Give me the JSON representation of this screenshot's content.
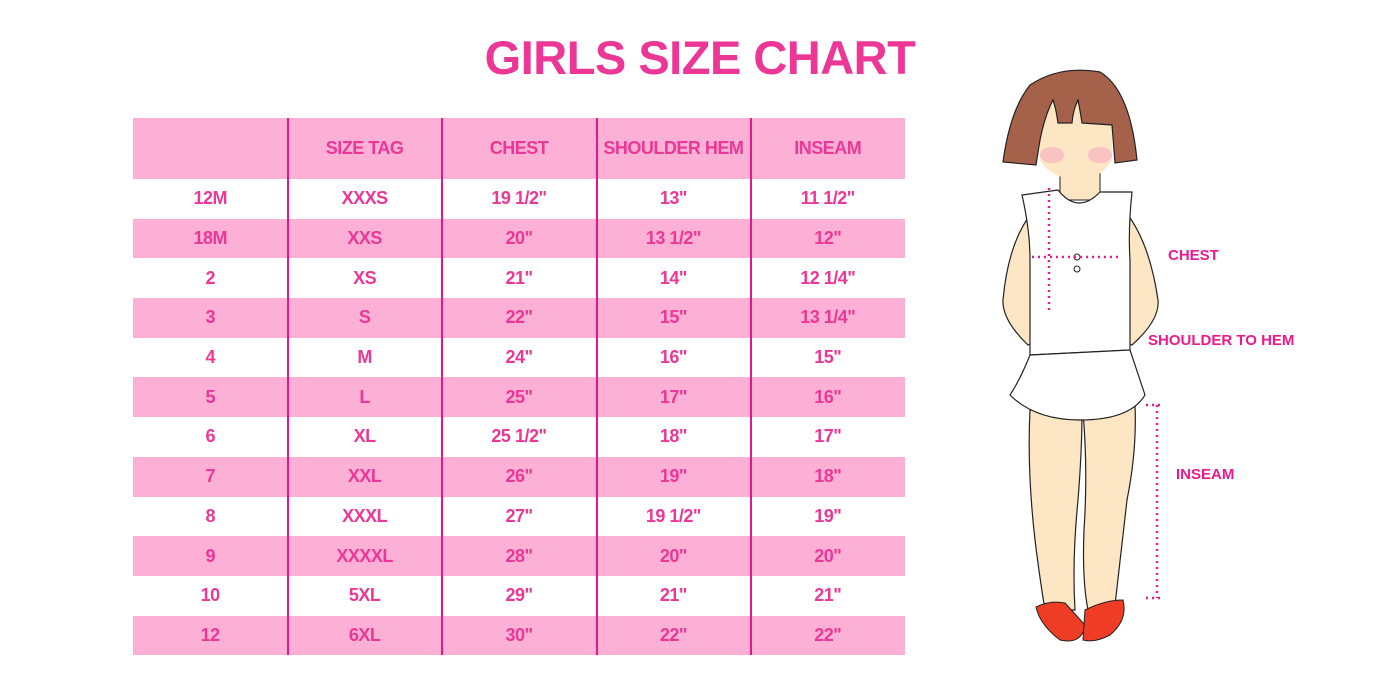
{
  "title": "GIRLS SIZE CHART",
  "table": {
    "headers": [
      "",
      "SIZE TAG",
      "CHEST",
      "SHOULDER HEM",
      "INSEAM"
    ],
    "rows": [
      [
        "12M",
        "XXXS",
        "19 1/2\"",
        "13\"",
        "11 1/2\""
      ],
      [
        "18M",
        "XXS",
        "20\"",
        "13 1/2\"",
        "12\""
      ],
      [
        "2",
        "XS",
        "21\"",
        "14\"",
        "12 1/4\""
      ],
      [
        "3",
        "S",
        "22\"",
        "15\"",
        "13 1/4\""
      ],
      [
        "4",
        "M",
        "24\"",
        "16\"",
        "15\""
      ],
      [
        "5",
        "L",
        "25\"",
        "17\"",
        "16\""
      ],
      [
        "6",
        "XL",
        "25 1/2\"",
        "18\"",
        "17\""
      ],
      [
        "7",
        "XXL",
        "26\"",
        "19\"",
        "18\""
      ],
      [
        "8",
        "XXXL",
        "27\"",
        "19 1/2\"",
        "19\""
      ],
      [
        "9",
        "XXXXL",
        "28\"",
        "20\"",
        "20\""
      ],
      [
        "10",
        "5XL",
        "29\"",
        "21\"",
        "21\""
      ],
      [
        "12",
        "6XL",
        "30\"",
        "22\"",
        "22\""
      ]
    ]
  },
  "figure": {
    "labels": {
      "chest": "CHEST",
      "shoulder_to_hem": "SHOULDER TO HEM",
      "inseam": "INSEAM"
    }
  },
  "colors": {
    "accent": "#ec3796",
    "row_pink": "#fdb0d6",
    "divider": "#e3168c",
    "hair": "#a5614a",
    "skin": "#fde6c4",
    "shoes": "#ee3c25"
  }
}
